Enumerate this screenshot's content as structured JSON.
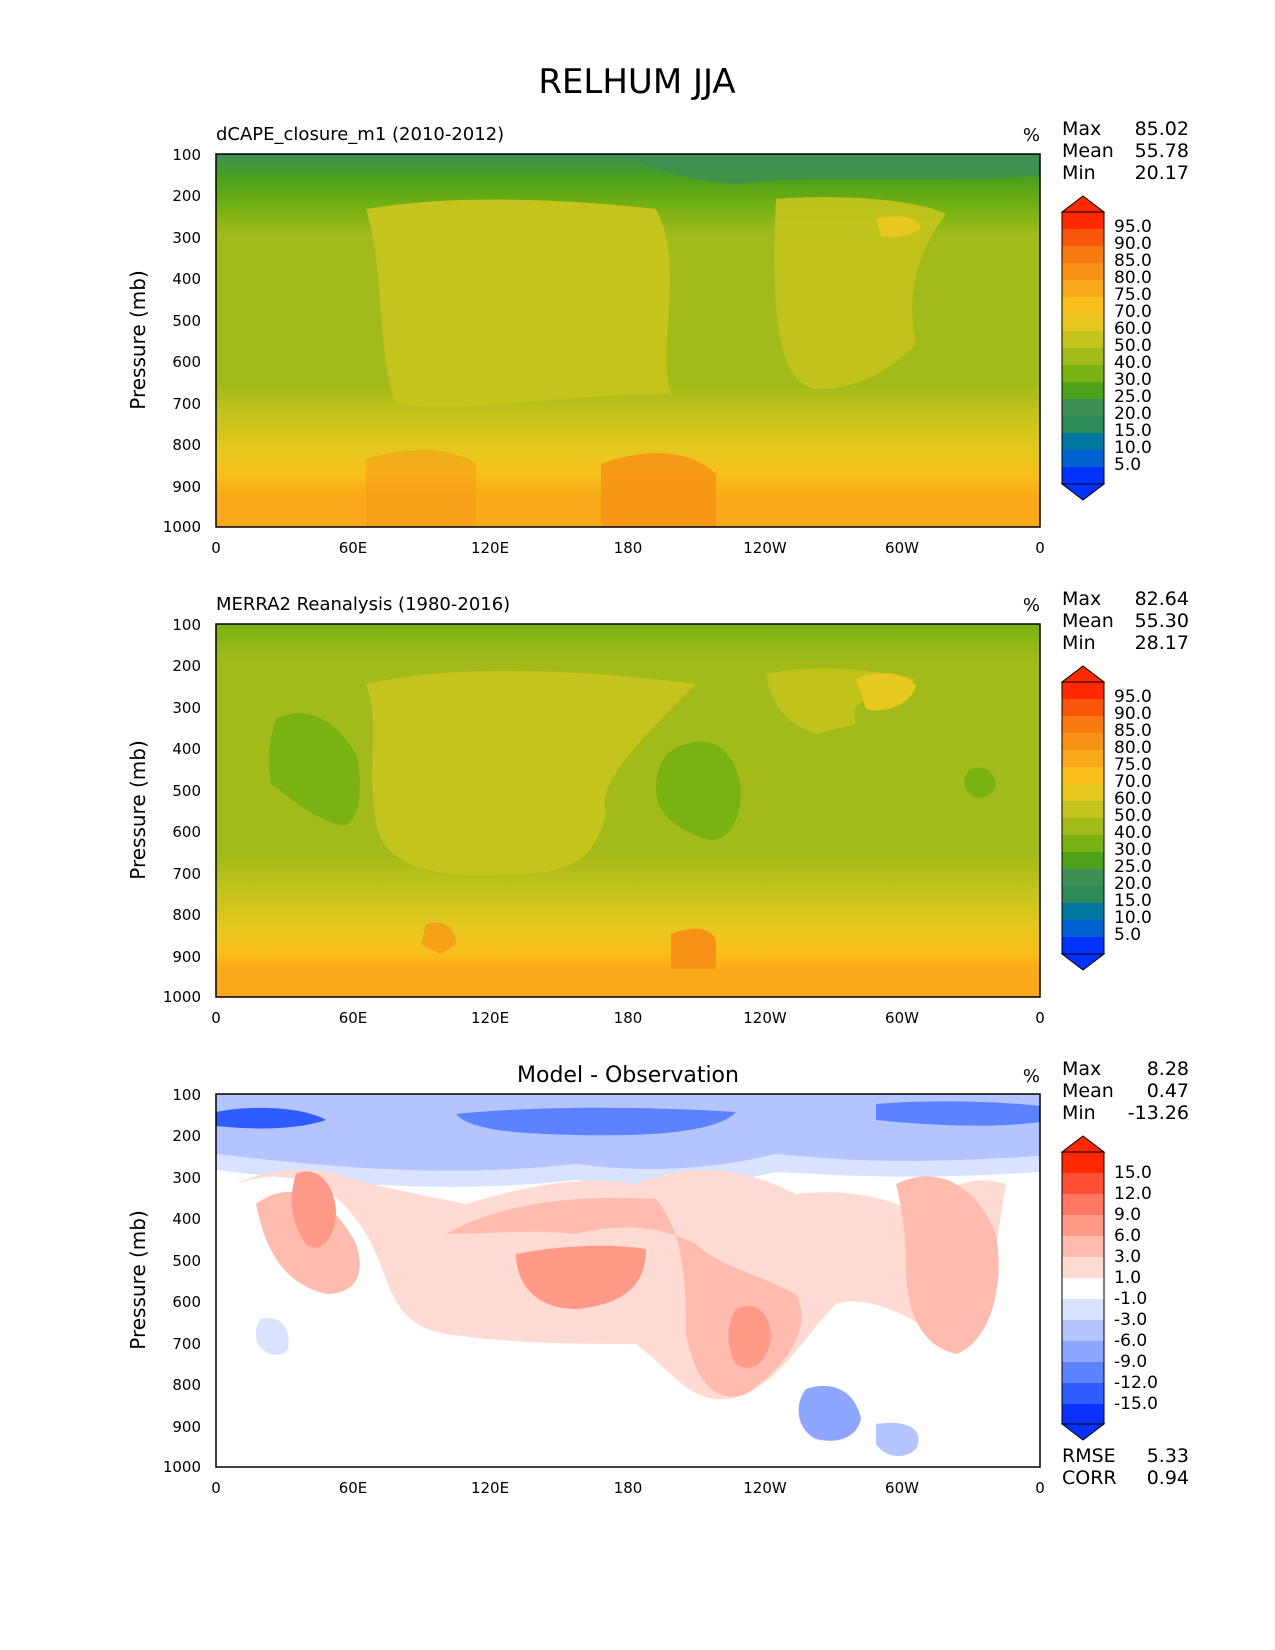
{
  "figure": {
    "title": "RELHUM JJA"
  },
  "colors": {
    "abs_levels": [
      "#0032ff",
      "#0063d1",
      "#00779e",
      "#2e8b57",
      "#3f8e55",
      "#4ca21a",
      "#7ab214",
      "#a3bb1a",
      "#c4c41c",
      "#e8c81e",
      "#f9bf1a",
      "#f9a91a",
      "#f79216",
      "#f77a12",
      "#f9560c",
      "#ff2a00"
    ],
    "diff_levels": [
      "#0a32ff",
      "#2d5cff",
      "#5b82ff",
      "#8da6ff",
      "#b3c4ff",
      "#d9e2ff",
      "#ffffff",
      "#ffdbd3",
      "#ffbbae",
      "#ff9a88",
      "#ff7760",
      "#ff5036",
      "#ff2800"
    ]
  },
  "chart_data": [
    {
      "type": "contour",
      "panel": "model",
      "title": "dCAPE_closure_m1 (2010-2012)",
      "units": "%",
      "ylabel": "Pressure (mb)",
      "xlabel": "",
      "xticks": [
        "0",
        "60E",
        "120E",
        "180",
        "120W",
        "60W",
        "0"
      ],
      "yticks": [
        "100",
        "200",
        "300",
        "400",
        "500",
        "600",
        "700",
        "800",
        "900",
        "1000"
      ],
      "xlim": [
        0,
        360
      ],
      "ylim": [
        1000,
        100
      ],
      "stats": [
        {
          "label": "Max",
          "value": "85.02"
        },
        {
          "label": "Mean",
          "value": "55.78"
        },
        {
          "label": "Min",
          "value": "20.17"
        }
      ],
      "colorbar_levels": [
        "5.0",
        "10.0",
        "15.0",
        "20.0",
        "25.0",
        "30.0",
        "40.0",
        "50.0",
        "60.0",
        "70.0",
        "75.0",
        "80.0",
        "85.0",
        "90.0",
        "95.0"
      ],
      "approx_field": {
        "pressure_bands": [
          {
            "p_top": 100,
            "p_bottom": 160,
            "rh": 33
          },
          {
            "p_top": 160,
            "p_bottom": 230,
            "rh": 42
          },
          {
            "p_top": 230,
            "p_bottom": 760,
            "rh": 52
          },
          {
            "p_top": 760,
            "p_bottom": 860,
            "rh": 66
          },
          {
            "p_top": 860,
            "p_bottom": 1000,
            "rh": 76
          }
        ]
      }
    },
    {
      "type": "contour",
      "panel": "observation",
      "title": "MERRA2 Reanalysis (1980-2016)",
      "units": "%",
      "ylabel": "Pressure (mb)",
      "xlabel": "",
      "xticks": [
        "0",
        "60E",
        "120E",
        "180",
        "120W",
        "60W",
        "0"
      ],
      "yticks": [
        "100",
        "200",
        "300",
        "400",
        "500",
        "600",
        "700",
        "800",
        "900",
        "1000"
      ],
      "xlim": [
        0,
        360
      ],
      "ylim": [
        1000,
        100
      ],
      "stats": [
        {
          "label": "Max",
          "value": "82.64"
        },
        {
          "label": "Mean",
          "value": "55.30"
        },
        {
          "label": "Min",
          "value": "28.17"
        }
      ],
      "colorbar_levels": [
        "5.0",
        "10.0",
        "15.0",
        "20.0",
        "25.0",
        "30.0",
        "40.0",
        "50.0",
        "60.0",
        "70.0",
        "75.0",
        "80.0",
        "85.0",
        "90.0",
        "95.0"
      ],
      "approx_field": {
        "pressure_bands": [
          {
            "p_top": 100,
            "p_bottom": 180,
            "rh": 38
          },
          {
            "p_top": 180,
            "p_bottom": 770,
            "rh": 52
          },
          {
            "p_top": 770,
            "p_bottom": 870,
            "rh": 66
          },
          {
            "p_top": 870,
            "p_bottom": 1000,
            "rh": 76
          }
        ]
      }
    },
    {
      "type": "contour",
      "panel": "difference",
      "title": "Model - Observation",
      "units": "%",
      "ylabel": "Pressure (mb)",
      "xlabel": "",
      "xticks": [
        "0",
        "60E",
        "120E",
        "180",
        "120W",
        "60W",
        "0"
      ],
      "yticks": [
        "100",
        "200",
        "300",
        "400",
        "500",
        "600",
        "700",
        "800",
        "900",
        "1000"
      ],
      "xlim": [
        0,
        360
      ],
      "ylim": [
        1000,
        100
      ],
      "stats": [
        {
          "label": "Max",
          "value": "8.28"
        },
        {
          "label": "Mean",
          "value": "0.47"
        },
        {
          "label": "Min",
          "value": "-13.26"
        }
      ],
      "extra_stats": [
        {
          "label": "RMSE",
          "value": "5.33"
        },
        {
          "label": "CORR",
          "value": "0.94"
        }
      ],
      "colorbar_levels": [
        "-15.0",
        "-12.0",
        "-9.0",
        "-6.0",
        "-3.0",
        "-1.0",
        "1.0",
        "3.0",
        "6.0",
        "9.0",
        "12.0",
        "15.0"
      ],
      "approx_field": {
        "pressure_bands": [
          {
            "p_top": 100,
            "p_bottom": 160,
            "rh": -7
          },
          {
            "p_top": 160,
            "p_bottom": 230,
            "rh": -4
          },
          {
            "p_top": 230,
            "p_bottom": 290,
            "rh": -1.5
          },
          {
            "p_top": 290,
            "p_bottom": 560,
            "rh": 2
          },
          {
            "p_top": 560,
            "p_bottom": 800,
            "rh": 3
          },
          {
            "p_top": 800,
            "p_bottom": 1000,
            "rh": 0
          }
        ]
      }
    }
  ]
}
